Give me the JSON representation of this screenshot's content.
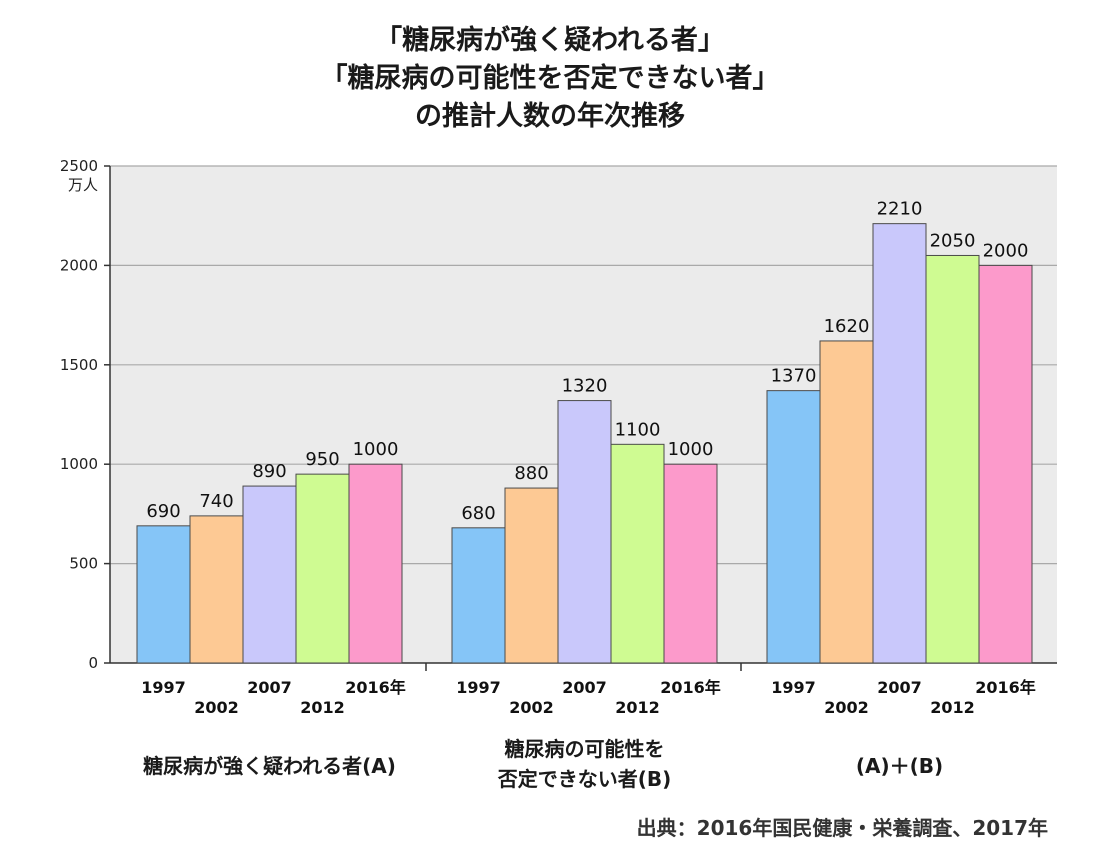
{
  "title_lines": [
    "「糖尿病が強く疑われる者」",
    "「糖尿病の可能性を否定できない者」",
    "の推計人数の年次推移"
  ],
  "source": "出典：2016年国民健康・栄養調査、2017年",
  "chart_data": {
    "type": "bar",
    "title": "「糖尿病が強く疑われる者」「糖尿病の可能性を否定できない者」の推計人数の年次推移",
    "ylabel": "万人",
    "ylim": [
      0,
      2500
    ],
    "yticks": [
      0,
      500,
      1000,
      1500,
      2000,
      2500
    ],
    "grid": true,
    "colors": [
      "#85c5f7",
      "#fdc994",
      "#c9c8fb",
      "#cffb92",
      "#fc9acb"
    ],
    "groups": [
      {
        "label": "糖尿病が強く疑われる者(A)",
        "label_lines": [
          "糖尿病が強く疑われる者(A)"
        ],
        "tick_labels": [
          "1997",
          "2002",
          "2007",
          "2012",
          "2016年"
        ],
        "values": [
          690,
          740,
          890,
          950,
          1000
        ]
      },
      {
        "label": "糖尿病の可能性を否定できない者(B)",
        "label_lines": [
          "糖尿病の可能性を",
          "否定できない者(B)"
        ],
        "tick_labels": [
          "1997",
          "2002",
          "2007",
          "2012",
          "2016年"
        ],
        "values": [
          680,
          880,
          1320,
          1100,
          1000
        ]
      },
      {
        "label": "(A)＋(B)",
        "label_lines": [
          "(A)＋(B)"
        ],
        "tick_labels": [
          "1997",
          "2002",
          "2007",
          "2012",
          "2016年"
        ],
        "values": [
          1370,
          1620,
          2210,
          2050,
          2000
        ]
      }
    ]
  }
}
